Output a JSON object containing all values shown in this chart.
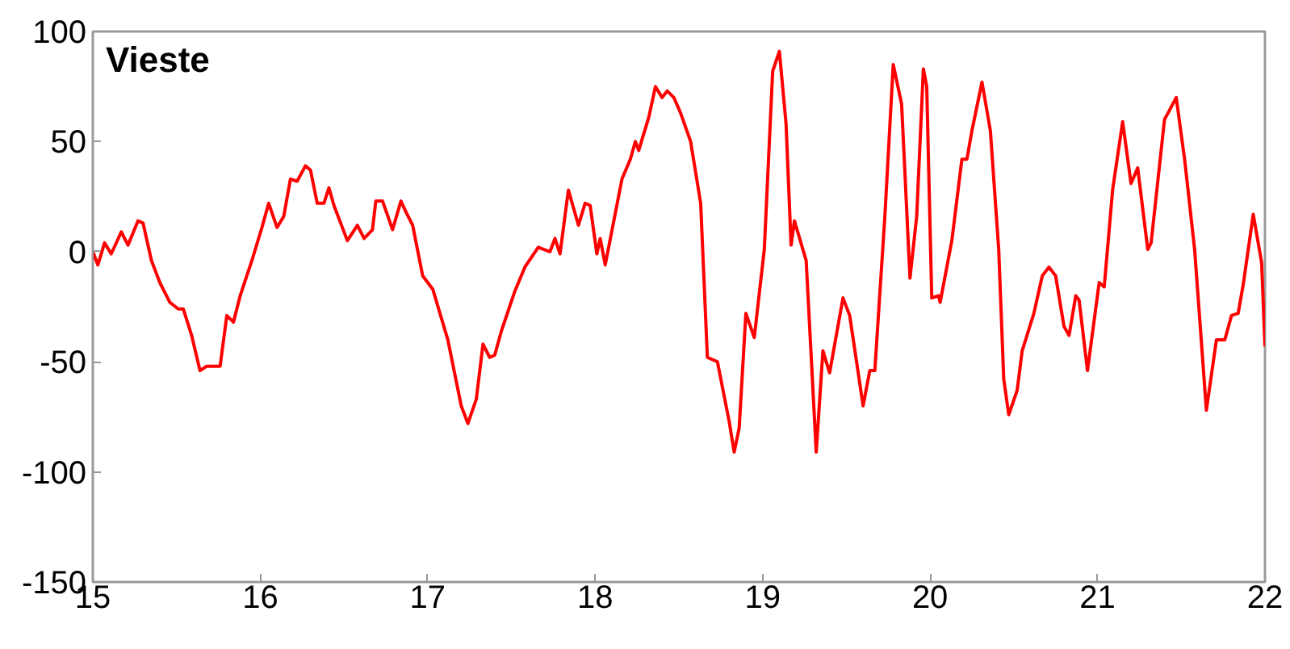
{
  "chart_data": {
    "type": "line",
    "title": "Vieste",
    "xlim": [
      15,
      22
    ],
    "ylim": [
      -150,
      100
    ],
    "xticks": [
      15,
      16,
      17,
      18,
      19,
      20,
      21,
      22
    ],
    "yticks": [
      -150,
      -100,
      -50,
      0,
      50,
      100
    ],
    "grid": false,
    "marker": "none",
    "line_style": "solid",
    "series": [
      {
        "color": "#ff0000",
        "x": [
          15.0,
          15.03,
          15.07,
          15.11,
          15.17,
          15.21,
          15.27,
          15.3,
          15.35,
          15.4,
          15.46,
          15.51,
          15.54,
          15.59,
          15.64,
          15.68,
          15.76,
          15.8,
          15.84,
          15.88,
          15.95,
          16.01,
          16.05,
          16.1,
          16.14,
          16.18,
          16.22,
          16.27,
          16.3,
          16.34,
          16.38,
          16.41,
          16.44,
          16.52,
          16.58,
          16.62,
          16.67,
          16.69,
          16.73,
          16.79,
          16.84,
          16.87,
          16.91,
          16.97,
          17.03,
          17.12,
          17.2,
          17.24,
          17.29,
          17.33,
          17.37,
          17.4,
          17.44,
          17.52,
          17.58,
          17.66,
          17.73,
          17.76,
          17.79,
          17.84,
          17.9,
          17.94,
          17.97,
          18.01,
          18.03,
          18.06,
          18.16,
          18.21,
          18.24,
          18.26,
          18.32,
          18.36,
          18.4,
          18.43,
          18.47,
          18.51,
          18.57,
          18.63,
          18.67,
          18.73,
          18.8,
          18.83,
          18.86,
          18.9,
          18.95,
          19.01,
          19.06,
          19.1,
          19.14,
          19.17,
          19.19,
          19.26,
          19.32,
          19.36,
          19.4,
          19.48,
          19.52,
          19.6,
          19.64,
          19.67,
          19.73,
          19.78,
          19.83,
          19.88,
          19.92,
          19.96,
          19.98,
          20.01,
          20.05,
          20.06,
          20.13,
          20.19,
          20.22,
          20.25,
          20.31,
          20.36,
          20.41,
          20.44,
          20.47,
          20.52,
          20.55,
          20.62,
          20.67,
          20.71,
          20.75,
          20.8,
          20.83,
          20.87,
          20.89,
          20.94,
          21.01,
          21.04,
          21.09,
          21.15,
          21.2,
          21.24,
          21.3,
          21.32,
          21.4,
          21.47,
          21.52,
          21.58,
          21.65,
          21.71,
          21.76,
          21.8,
          21.84,
          21.87,
          21.93,
          21.98,
          22.0
        ],
        "values": [
          0,
          -6,
          4,
          -1,
          9,
          3,
          14,
          13,
          -4,
          -14,
          -23,
          -26,
          -26,
          -38,
          -54,
          -52,
          -52,
          -29,
          -32,
          -20,
          -4,
          11,
          22,
          11,
          16,
          33,
          32,
          39,
          37,
          22,
          22,
          29,
          21,
          5,
          12,
          6,
          10,
          23,
          23,
          10,
          23,
          18,
          12,
          -11,
          -17,
          -40,
          -70,
          -78,
          -67,
          -42,
          -48,
          -47,
          -36,
          -18,
          -7,
          2,
          0,
          6,
          -1,
          28,
          12,
          22,
          21,
          -1,
          6,
          -6,
          33,
          42,
          50,
          46,
          61,
          75,
          70,
          73,
          70,
          63,
          50,
          22,
          -48,
          -50,
          -77,
          -91,
          -80,
          -28,
          -39,
          1,
          82,
          91,
          58,
          3,
          14,
          -4,
          -91,
          -45,
          -55,
          -21,
          -29,
          -70,
          -54,
          -54,
          16,
          85,
          67,
          -12,
          16,
          83,
          75,
          -21,
          -20,
          -23,
          5,
          42,
          42,
          55,
          77,
          55,
          1,
          -58,
          -74,
          -63,
          -45,
          -28,
          -11,
          -7,
          -11,
          -34,
          -38,
          -20,
          -22,
          -54,
          -14,
          -16,
          28,
          59,
          31,
          38,
          1,
          4,
          60,
          70,
          42,
          1,
          -72,
          -40,
          -40,
          -29,
          -28,
          -15,
          17,
          -5,
          -43
        ]
      }
    ]
  }
}
